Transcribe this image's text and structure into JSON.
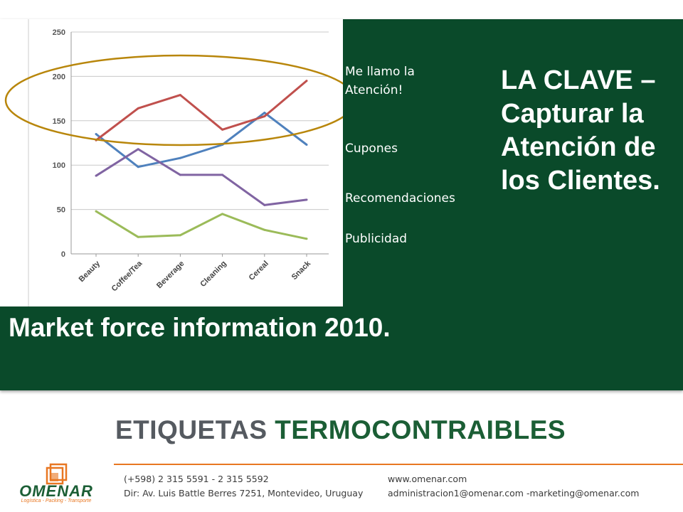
{
  "chart_data": {
    "type": "line",
    "categories": [
      "Beauty",
      "Coffee/Tea",
      "Beverage",
      "Cleaning",
      "Cereal",
      "Snack"
    ],
    "ylim": [
      0,
      250
    ],
    "yticks": [
      0,
      50,
      100,
      150,
      200,
      250
    ],
    "grid": true,
    "series": [
      {
        "name": "Me llamo la Atención!",
        "color": "#4f81bd",
        "values": [
          135,
          98,
          108,
          123,
          159,
          123
        ]
      },
      {
        "name": "Cupones",
        "color": "#c0504d",
        "values": [
          128,
          164,
          179,
          140,
          155,
          195
        ]
      },
      {
        "name": "Recomendaciones",
        "color": "#8064a2",
        "values": [
          88,
          118,
          89,
          89,
          55,
          61
        ]
      },
      {
        "name": "Publicidad",
        "color": "#9bbb59",
        "values": [
          48,
          19,
          21,
          45,
          27,
          17
        ]
      }
    ],
    "highlight_color": "#b8860b"
  },
  "legend": [
    "Me llamo la Atención!",
    "Cupones",
    "Recomendaciones",
    "Publicidad"
  ],
  "headline": "LA CLAVE – Capturar la Atención de los Clientes.",
  "source": "Market force information 2010.",
  "title": {
    "word1": "ETIQUETAS",
    "word2": "TERMOCONTRAIBLES"
  },
  "contact": {
    "phone": "(+598) 2 315 5591 - 2 315 5592",
    "address": "Dir: Av. Luis Battle Berres 7251, Montevideo, Uruguay",
    "web": "www.omenar.com",
    "email": "administracion1@omenar.com -marketing@omenar.com"
  },
  "logo": {
    "name": "OMENAR",
    "tagline": "Logística - Packing - Transporte"
  },
  "colors": {
    "panel": "#0a4a2a",
    "accent": "#e87722",
    "brand_green": "#1b5e35"
  }
}
